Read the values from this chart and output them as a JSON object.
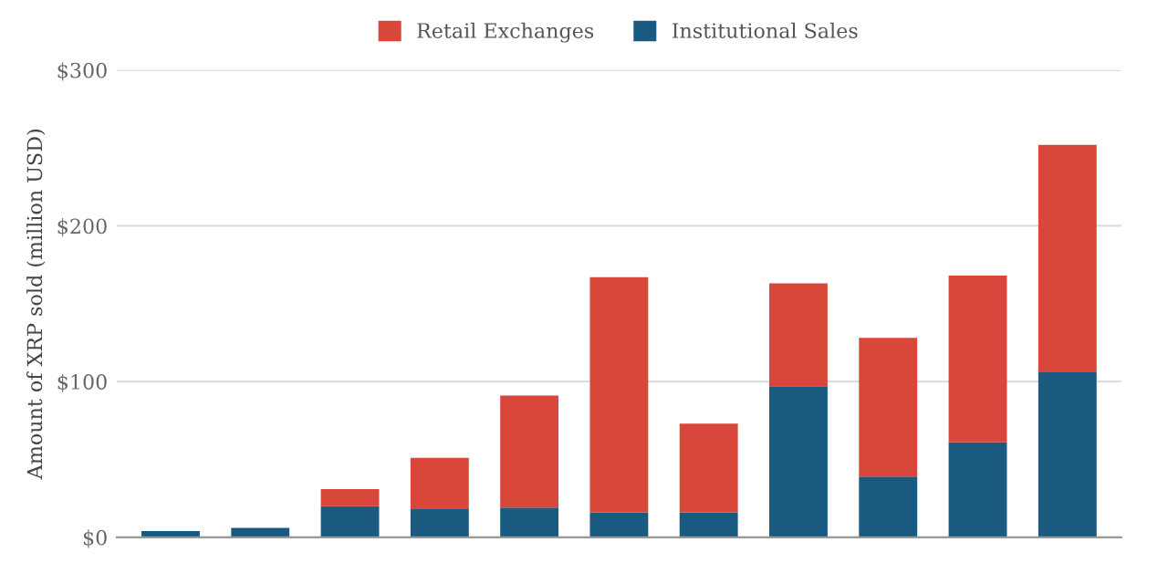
{
  "chart_data": {
    "type": "bar",
    "stacked": true,
    "ylabel": "Amount of XRP sold (million USD)",
    "categories": [
      null,
      null,
      null,
      null,
      null,
      null,
      null,
      null,
      null,
      null,
      null
    ],
    "series": [
      {
        "name": "Institutional Sales",
        "color": "#1b5a80",
        "values": [
          4,
          6,
          20,
          18,
          19,
          16,
          16,
          97,
          39,
          61,
          106
        ]
      },
      {
        "name": "Retail Exchanges",
        "color": "#d9473b",
        "values": [
          null,
          null,
          11,
          33,
          72,
          151,
          57,
          66,
          89,
          107,
          146
        ]
      }
    ],
    "ylim": [
      0,
      300
    ],
    "yticks": [
      {
        "value": 0,
        "label": "$0"
      },
      {
        "value": 100,
        "label": "$100"
      },
      {
        "value": 200,
        "label": "$200"
      },
      {
        "value": 300,
        "label": "$300"
      }
    ],
    "grid": "y",
    "legend": "top"
  }
}
